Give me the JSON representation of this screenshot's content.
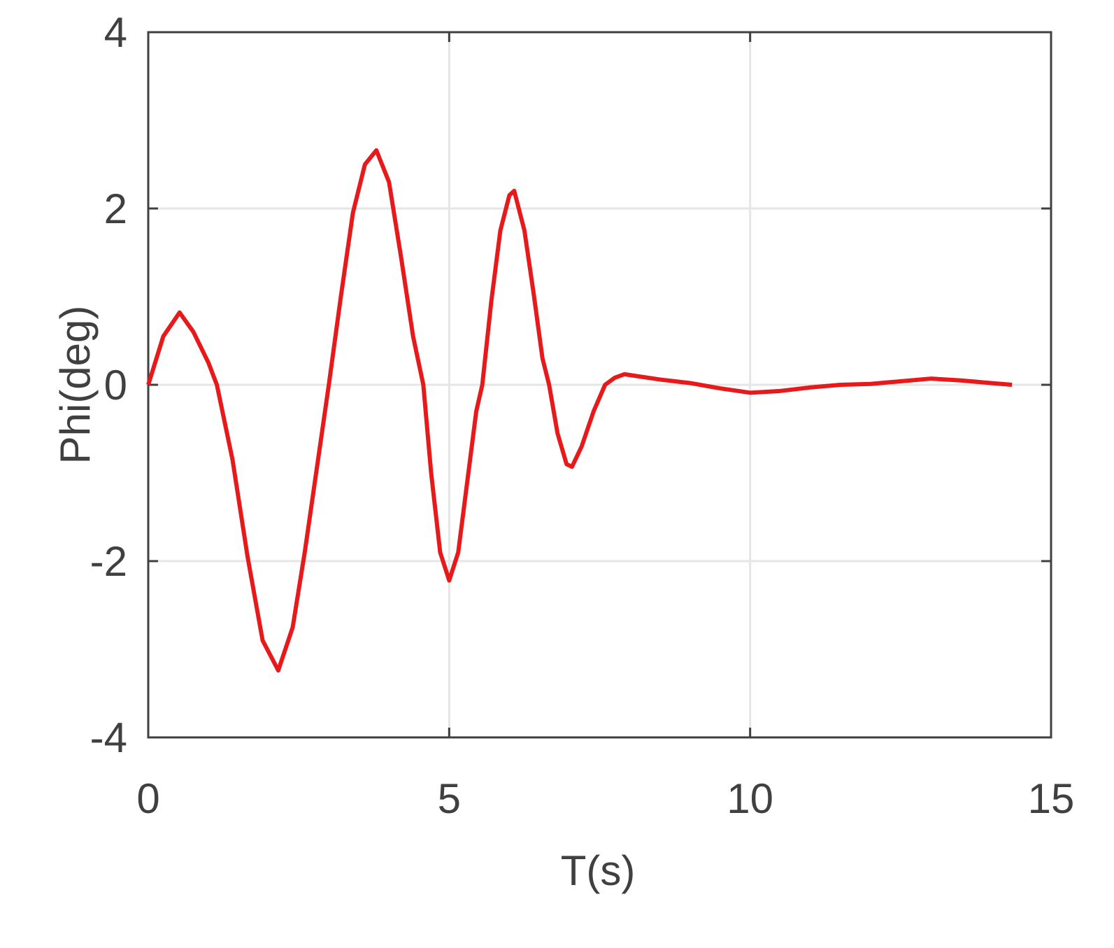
{
  "chart_data": {
    "type": "line",
    "x_label": "T(s)",
    "y_label": "Phi(deg)",
    "x": [
      0,
      0.25,
      0.52,
      0.75,
      1.0,
      1.14,
      1.4,
      1.65,
      1.9,
      2.16,
      2.4,
      2.6,
      2.8,
      3.0,
      3.2,
      3.4,
      3.6,
      3.79,
      4.0,
      4.2,
      4.4,
      4.57,
      4.7,
      4.85,
      5.0,
      5.15,
      5.3,
      5.45,
      5.55,
      5.7,
      5.85,
      6.0,
      6.08,
      6.25,
      6.4,
      6.55,
      6.66,
      6.8,
      6.95,
      7.04,
      7.2,
      7.4,
      7.59,
      7.75,
      7.91,
      8.5,
      9,
      9.5,
      10,
      10.5,
      11,
      11.5,
      12,
      12.5,
      13,
      13.5,
      14,
      14.35
    ],
    "series": [
      {
        "name": "Phi",
        "color": "#e8191b",
        "values": [
          0,
          0.55,
          0.82,
          0.6,
          0.25,
          0,
          -0.85,
          -1.95,
          -2.9,
          -3.24,
          -2.75,
          -1.9,
          -0.95,
          0,
          1.0,
          1.95,
          2.5,
          2.66,
          2.3,
          1.45,
          0.55,
          0,
          -1.0,
          -1.9,
          -2.22,
          -1.9,
          -1.1,
          -0.3,
          0,
          0.95,
          1.75,
          2.15,
          2.2,
          1.75,
          1.05,
          0.3,
          0,
          -0.55,
          -0.9,
          -0.93,
          -0.7,
          -0.3,
          0,
          0.08,
          0.12,
          0.06,
          0.02,
          -0.04,
          -0.09,
          -0.07,
          -0.03,
          0,
          0.01,
          0.04,
          0.07,
          0.05,
          0.02,
          0
        ]
      }
    ],
    "xlim": [
      0,
      15
    ],
    "ylim": [
      -4,
      4
    ],
    "xticks": [
      0,
      5,
      10,
      15
    ],
    "yticks": [
      -4,
      -2,
      0,
      2,
      4
    ],
    "grid": true
  }
}
